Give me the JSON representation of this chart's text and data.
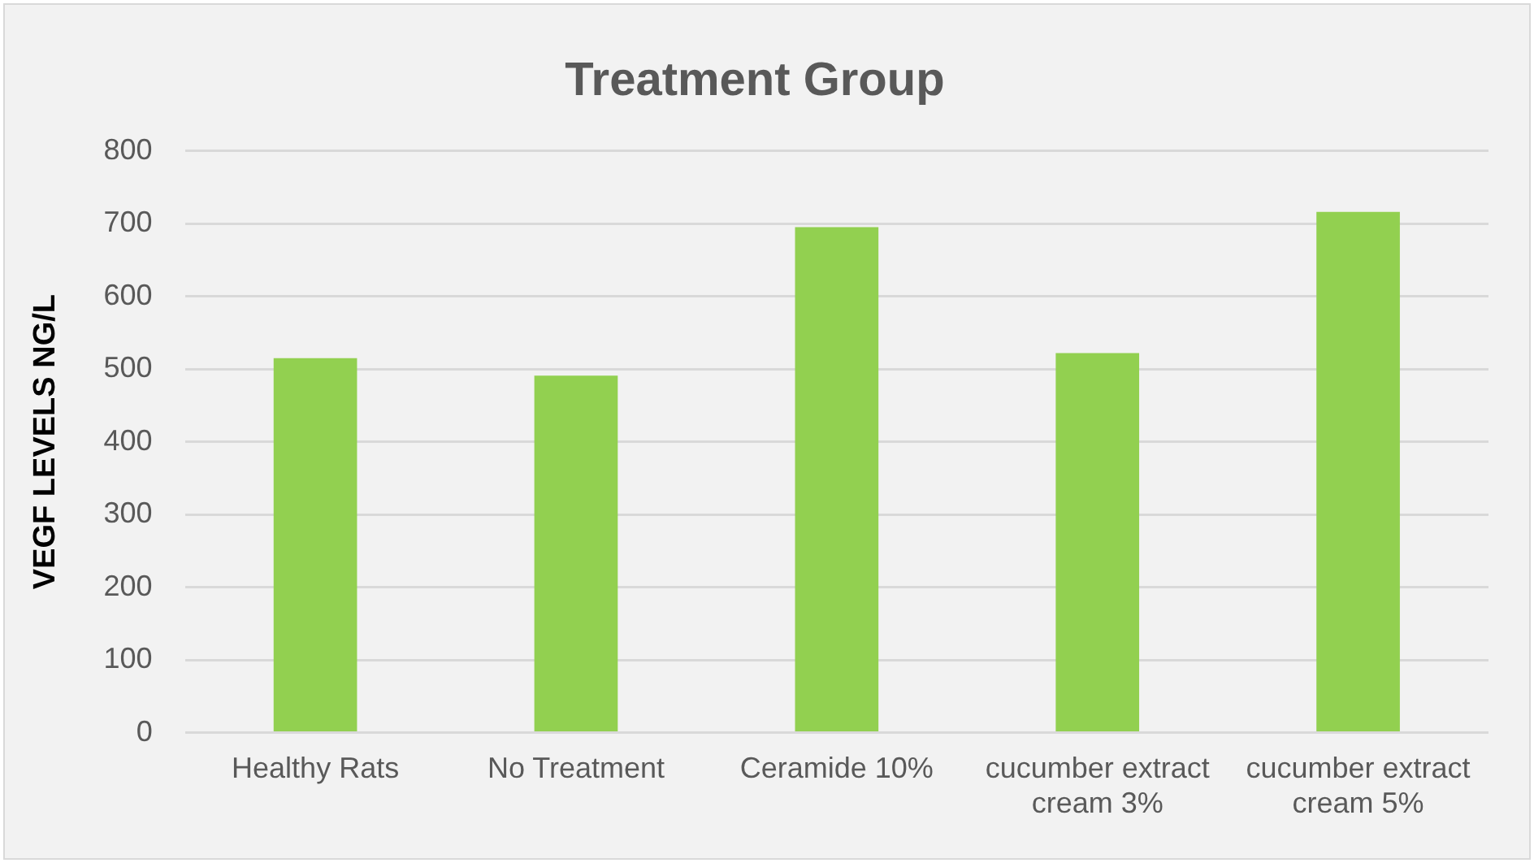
{
  "chart_data": {
    "type": "bar",
    "title": "Treatment Group",
    "ylabel": "VEGF LEVELS NG/L",
    "categories": [
      "Healthy Rats",
      "No Treatment",
      "Ceramide 10%",
      "cucumber extract cream 3%",
      "cucumber extract cream 5%"
    ],
    "values": [
      515,
      491,
      695,
      522,
      716
    ],
    "color": "#92d050",
    "ylim": [
      0,
      800
    ],
    "yticks": [
      0,
      100,
      200,
      300,
      400,
      500,
      600,
      700,
      800
    ],
    "grid": "y",
    "legend": false
  }
}
